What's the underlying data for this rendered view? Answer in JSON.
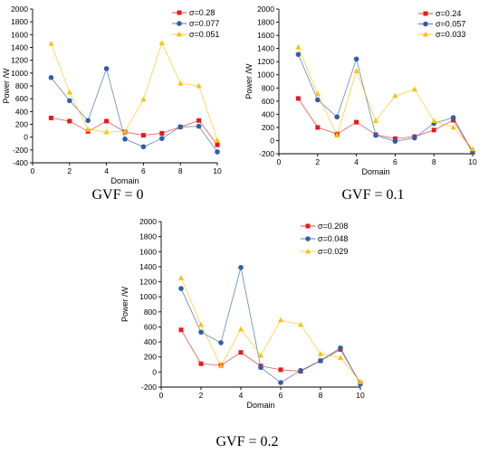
{
  "chart_data": [
    {
      "type": "line",
      "caption": "GVF = 0",
      "xlabel": "Domain",
      "ylabel": "Power /W",
      "xlim": [
        0,
        10
      ],
      "ylim": [
        -400,
        2000
      ],
      "xticks": [
        "0",
        "2",
        "4",
        "6",
        "8",
        "10"
      ],
      "yticks": [
        "-400",
        "-200",
        "0",
        "200",
        "400",
        "600",
        "800",
        "1000",
        "1200",
        "1400",
        "1600",
        "1800",
        "2000"
      ],
      "grid": false,
      "legend": "top-right",
      "x": [
        1,
        2,
        3,
        4,
        5,
        6,
        7,
        8,
        9,
        10
      ],
      "series": [
        {
          "name": "σ=0.28",
          "color": "#e8191c",
          "marker": "square",
          "values": [
            300,
            250,
            90,
            250,
            80,
            30,
            60,
            160,
            260,
            -120
          ]
        },
        {
          "name": "σ=0.077",
          "color": "#2e5fa8",
          "marker": "circle",
          "values": [
            930,
            570,
            260,
            1070,
            -30,
            -150,
            -20,
            160,
            170,
            -230
          ]
        },
        {
          "name": "σ=0.051",
          "color": "#ffc000",
          "marker": "triangle",
          "values": [
            1460,
            700,
            120,
            80,
            90,
            590,
            1470,
            840,
            800,
            -50
          ]
        }
      ]
    },
    {
      "type": "line",
      "caption": "GVF = 0.1",
      "xlabel": "Domain",
      "ylabel": "Power /W",
      "xlim": [
        0,
        10
      ],
      "ylim": [
        -200,
        2000
      ],
      "xticks": [
        "0",
        "2",
        "4",
        "6",
        "8",
        "10"
      ],
      "yticks": [
        "-200",
        "0",
        "200",
        "400",
        "600",
        "800",
        "1000",
        "1200",
        "1400",
        "1600",
        "1800",
        "2000"
      ],
      "grid": false,
      "legend": "top-right",
      "x": [
        1,
        2,
        3,
        4,
        5,
        6,
        7,
        8,
        9,
        10
      ],
      "series": [
        {
          "name": "σ=0.24",
          "color": "#e8191c",
          "marker": "square",
          "values": [
            640,
            200,
            100,
            280,
            90,
            30,
            60,
            160,
            310,
            -180
          ]
        },
        {
          "name": "σ=0.057",
          "color": "#2e5fa8",
          "marker": "circle",
          "values": [
            1310,
            620,
            360,
            1240,
            80,
            -10,
            40,
            260,
            350,
            -170
          ]
        },
        {
          "name": "σ=0.033",
          "color": "#ffc000",
          "marker": "triangle",
          "values": [
            1420,
            710,
            80,
            1060,
            300,
            680,
            780,
            300,
            200,
            -130
          ]
        }
      ]
    },
    {
      "type": "line",
      "caption": "GVF = 0.2",
      "xlabel": "Domain",
      "ylabel": "Power /W",
      "xlim": [
        0,
        10
      ],
      "ylim": [
        -200,
        2000
      ],
      "xticks": [
        "0",
        "2",
        "4",
        "6",
        "8",
        "10"
      ],
      "yticks": [
        "-200",
        "0",
        "200",
        "400",
        "600",
        "800",
        "1000",
        "1200",
        "1400",
        "1600",
        "1800",
        "2000"
      ],
      "grid": false,
      "legend": "top-right",
      "x": [
        1,
        2,
        3,
        4,
        5,
        6,
        7,
        8,
        9,
        10
      ],
      "series": [
        {
          "name": "σ=0.208",
          "color": "#e8191c",
          "marker": "square",
          "values": [
            560,
            110,
            90,
            260,
            80,
            30,
            10,
            150,
            300,
            -150
          ]
        },
        {
          "name": "σ=0.048",
          "color": "#2e5fa8",
          "marker": "circle",
          "values": [
            1110,
            530,
            390,
            1390,
            60,
            -140,
            20,
            150,
            320,
            -160
          ]
        },
        {
          "name": "σ=0.029",
          "color": "#ffc000",
          "marker": "triangle",
          "values": [
            1250,
            630,
            80,
            570,
            220,
            690,
            630,
            240,
            190,
            -130
          ]
        }
      ]
    }
  ]
}
